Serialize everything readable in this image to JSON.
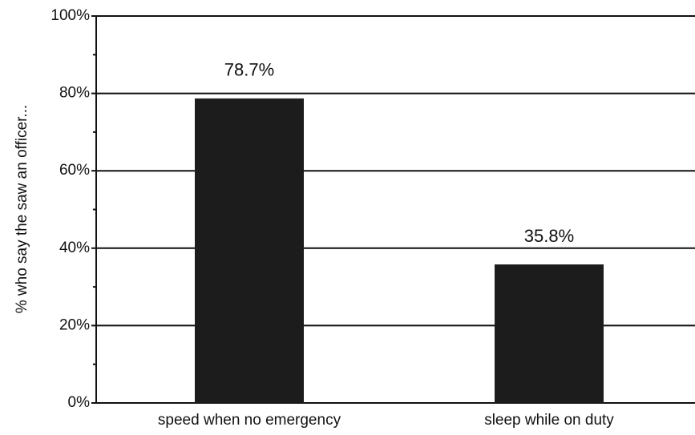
{
  "chart_data": {
    "type": "bar",
    "y_axis_label": "% who say the saw an officer...",
    "categories": [
      "speed when no emergency",
      "sleep while on duty"
    ],
    "values": [
      78.7,
      35.8
    ],
    "value_labels": [
      "78.7%",
      "35.8%"
    ],
    "color": "#1c1c1c",
    "ylim": [
      0,
      100
    ],
    "yticks": [
      {
        "value": 0,
        "label": "0%"
      },
      {
        "value": 20,
        "label": "20%"
      },
      {
        "value": 40,
        "label": "40%"
      },
      {
        "value": 60,
        "label": "60%"
      },
      {
        "value": 80,
        "label": "80%"
      },
      {
        "value": 100,
        "label": "100%"
      }
    ],
    "yticks_minor": [
      10,
      30,
      50,
      70,
      90
    ],
    "grid": true
  }
}
